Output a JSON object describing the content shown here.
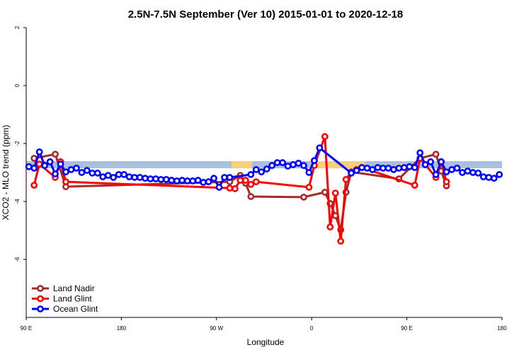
{
  "chart_data": {
    "type": "line",
    "title": "2.5N-7.5N September (Ver 10)   2015-01-01 to 2020-12-18",
    "x_label": "Longitude",
    "y_label": "XCO2 - MLO trend (ppm)",
    "xlim": [
      90,
      540
    ],
    "xticks": [
      {
        "value": 90,
        "label": "90 E"
      },
      {
        "value": 180,
        "label": "180"
      },
      {
        "value": 270,
        "label": "90 W"
      },
      {
        "value": 360,
        "label": "0"
      },
      {
        "value": 450,
        "label": "90 E"
      },
      {
        "value": 540,
        "label": "180"
      }
    ],
    "ylim": [
      -8,
      2
    ],
    "yticks": [
      -6,
      -4,
      -2,
      0,
      2
    ],
    "legend": "bottom-left",
    "series": [
      {
        "name": "Land Nadir",
        "color": "#a52a2a",
        "x": [
          97.5,
          117.5,
          127.5,
          282.5,
          292.5,
          297.5,
          302.5,
          352.5,
          372.5,
          377.5,
          382.5,
          387.5,
          392.5,
          397.5,
          442.5,
          462.5,
          477.5,
          482.5,
          487.5
        ],
        "values": [
          -2.51,
          -2.37,
          -3.49,
          -3.32,
          -3.1,
          -3.37,
          -3.83,
          -3.85,
          -3.68,
          -4.07,
          -4.49,
          -4.98,
          -3.68,
          -2.98,
          -3.22,
          -2.51,
          -2.37,
          -2.95,
          -3.46
        ]
      },
      {
        "name": "Land Glint",
        "color": "#ff0000",
        "x": [
          97.5,
          102.5,
          117.5,
          122.5,
          127.5,
          282.5,
          287.5,
          292.5,
          297.5,
          302.5,
          307.5,
          357.5,
          362.5,
          372.5,
          377.5,
          382.5,
          387.5,
          392.5,
          397.5,
          402.5,
          407.5,
          457.5,
          462.5,
          477.5,
          482.5,
          487.5
        ],
        "values": [
          -3.44,
          -2.71,
          -3.17,
          -2.63,
          -3.32,
          -3.54,
          -3.56,
          -3.27,
          -3.27,
          -3.41,
          -3.32,
          -3.51,
          -2.76,
          -1.76,
          -4.88,
          -3.71,
          -5.37,
          -3.24,
          -2.98,
          -2.9,
          -2.83,
          -3.44,
          -2.51,
          -3.17,
          -2.63,
          -3.32
        ]
      },
      {
        "name": "Ocean Glint",
        "color": "#0000ff",
        "x": [
          92.5,
          97.5,
          102.5,
          107.5,
          112.5,
          117.5,
          122.5,
          127.5,
          132.5,
          137.5,
          142.5,
          147.5,
          152.5,
          157.5,
          162.5,
          167.5,
          172.5,
          177.5,
          182.5,
          187.5,
          192.5,
          197.5,
          202.5,
          207.5,
          212.5,
          217.5,
          222.5,
          227.5,
          232.5,
          237.5,
          242.5,
          247.5,
          252.5,
          257.5,
          262.5,
          267.5,
          272.5,
          277.5,
          282.5,
          302.5,
          307.5,
          312.5,
          317.5,
          322.5,
          327.5,
          332.5,
          337.5,
          342.5,
          347.5,
          352.5,
          357.5,
          362.5,
          367.5,
          397.5,
          402.5,
          407.5,
          412.5,
          417.5,
          422.5,
          427.5,
          432.5,
          437.5,
          442.5,
          447.5,
          452.5,
          457.5,
          462.5,
          467.5,
          472.5,
          477.5,
          482.5,
          487.5,
          492.5,
          497.5,
          502.5,
          507.5,
          512.5,
          517.5,
          522.5,
          527.5,
          532.5,
          537.5
        ],
        "values": [
          -2.8,
          -2.85,
          -2.29,
          -2.76,
          -2.63,
          -3.05,
          -2.71,
          -2.98,
          -2.9,
          -2.85,
          -3.0,
          -2.93,
          -3.02,
          -3.02,
          -3.15,
          -3.1,
          -3.17,
          -3.07,
          -3.07,
          -3.15,
          -3.17,
          -3.17,
          -3.2,
          -3.22,
          -3.22,
          -3.24,
          -3.24,
          -3.27,
          -3.29,
          -3.27,
          -3.29,
          -3.29,
          -3.27,
          -3.34,
          -3.32,
          -3.2,
          -3.51,
          -3.17,
          -3.17,
          -3.07,
          -2.9,
          -2.98,
          -2.88,
          -2.76,
          -2.66,
          -2.66,
          -2.78,
          -2.73,
          -2.68,
          -2.76,
          -3.0,
          -2.59,
          -2.15,
          -3.02,
          -2.93,
          -2.83,
          -2.85,
          -2.9,
          -2.83,
          -2.85,
          -2.85,
          -2.9,
          -2.85,
          -2.83,
          -2.8,
          -2.83,
          -2.32,
          -2.73,
          -2.63,
          -3.07,
          -2.63,
          -2.98,
          -2.9,
          -2.85,
          -3.0,
          -2.95,
          -3.0,
          -3.02,
          -3.15,
          -3.17,
          -3.2,
          -3.07
        ]
      }
    ]
  }
}
